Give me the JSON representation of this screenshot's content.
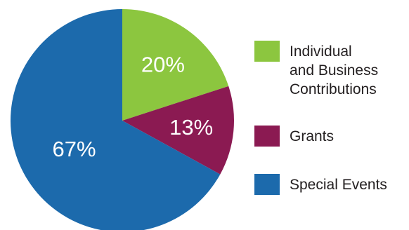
{
  "chart_data": {
    "type": "pie",
    "title": "",
    "legend_position": "right",
    "slices": [
      {
        "label_lines": [
          "Individual",
          "and Business",
          "Contributions"
        ],
        "value": 20,
        "display": "20%",
        "color": "#8cc63f"
      },
      {
        "label_lines": [
          "Grants"
        ],
        "value": 13,
        "display": "13%",
        "color": "#8b1a52"
      },
      {
        "label_lines": [
          "Special Events"
        ],
        "value": 67,
        "display": "67%",
        "color": "#1c6aac"
      }
    ]
  }
}
